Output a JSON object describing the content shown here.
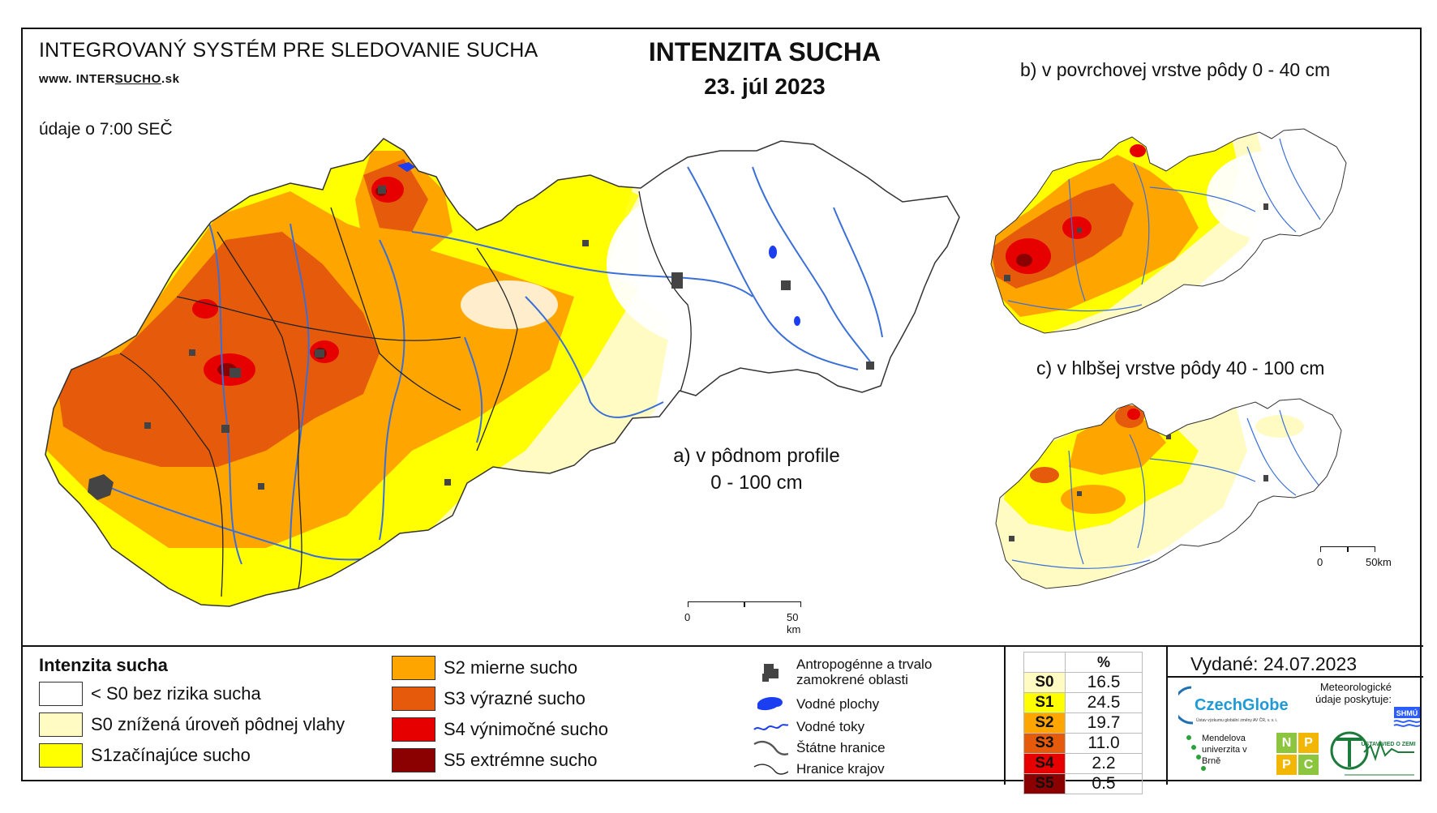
{
  "header": {
    "system_title": "INTEGROVANÝ SYSTÉM PRE SLEDOVANIE SUCHA",
    "website_prefix": "www. INTER",
    "website_underlined": "SUCHO",
    "website_suffix": ".sk",
    "data_time": "údaje o 7:00 SEČ",
    "title": "INTENZITA SUCHA",
    "date": "23. júl 2023"
  },
  "maps": {
    "a": {
      "label_line1": "a) v pôdnom profile",
      "label_line2": "0 - 100 cm",
      "scale_start": "0",
      "scale_end": "50 km"
    },
    "b": {
      "label": "b) v povrchovej vrstve pôdy 0 - 40 cm"
    },
    "c": {
      "label": "c) v hlbšej vrstve pôdy 40 - 100 cm",
      "scale_start": "0",
      "scale_end": "50km"
    }
  },
  "legend": {
    "title": "Intenzita sucha",
    "classes": [
      {
        "label": "< S0 bez rizika sucha",
        "color": "#ffffff"
      },
      {
        "label": "S0 znížená úroveň pôdnej vlahy",
        "color": "#fffbc2"
      },
      {
        "label": "S1začínajúce sucho",
        "color": "#ffff00"
      },
      {
        "label": "S2 mierne sucho",
        "color": "#ffa500"
      },
      {
        "label": "S3 výrazné sucho",
        "color": "#e55a0b"
      },
      {
        "label": "S4 výnimočné sucho",
        "color": "#e60000"
      },
      {
        "label": "S5 extrémne sucho",
        "color": "#8b0000"
      }
    ]
  },
  "symbols": [
    {
      "icon": "urban-area-icon",
      "label": "Antropogénne a trvalo zamokrené oblasti"
    },
    {
      "icon": "water-body-icon",
      "label": "Vodné plochy"
    },
    {
      "icon": "river-icon",
      "label": "Vodné toky"
    },
    {
      "icon": "state-border-icon",
      "label": "Štátne hranice"
    },
    {
      "icon": "region-border-icon",
      "label": "Hranice krajov"
    }
  ],
  "percentages": {
    "header": "%",
    "rows": [
      {
        "level": "S0",
        "value": "16.5",
        "color": "#fffbc2"
      },
      {
        "level": "S1",
        "value": "24.5",
        "color": "#ffff00"
      },
      {
        "level": "S2",
        "value": "19.7",
        "color": "#ffa500"
      },
      {
        "level": "S3",
        "value": "11.0",
        "color": "#e55a0b"
      },
      {
        "level": "S4",
        "value": "2.2",
        "color": "#e60000"
      },
      {
        "level": "S5",
        "value": "0.5",
        "color": "#8b0000"
      }
    ]
  },
  "footer": {
    "issued": "Vydané: 24.07.2023",
    "czechglobe": "CzechGlobe",
    "czechglobe_sub": "Ústav výzkumu globální změny AV ČR, v. v. i.",
    "shmu_text": "Meteorologické údaje poskytuje:",
    "shmu": "SHMÚ",
    "mendelu": "Mendelova univerzita v Brně",
    "npc": [
      "N",
      "P",
      "P",
      "C"
    ],
    "uvz": "ÚSTAV VIED O ZEMI"
  }
}
